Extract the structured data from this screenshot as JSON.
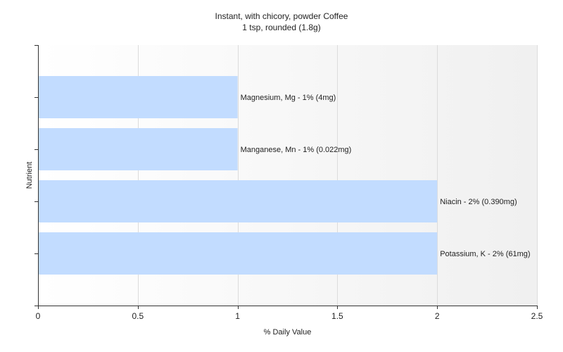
{
  "chart_data": {
    "type": "bar",
    "orientation": "horizontal",
    "title": "Instant, with chicory, powder Coffee",
    "subtitle": "1 tsp, rounded (1.8g)",
    "xlabel": "% Daily Value",
    "ylabel": "Nutrient",
    "xlim": [
      0,
      2.5
    ],
    "xticks": [
      "0",
      "0.5",
      "1",
      "1.5",
      "2",
      "2.5"
    ],
    "categories": [
      "Magnesium, Mg",
      "Manganese, Mn",
      "Niacin",
      "Potassium, K"
    ],
    "values": [
      1,
      1,
      2,
      2
    ],
    "labels": [
      "Magnesium, Mg - 1% (4mg)",
      "Manganese, Mn - 1% (0.022mg)",
      "Niacin - 2% (0.390mg)",
      "Potassium, K - 2% (61mg)"
    ],
    "bar_color": "#c2dcff",
    "grid": true,
    "legend": "none"
  }
}
